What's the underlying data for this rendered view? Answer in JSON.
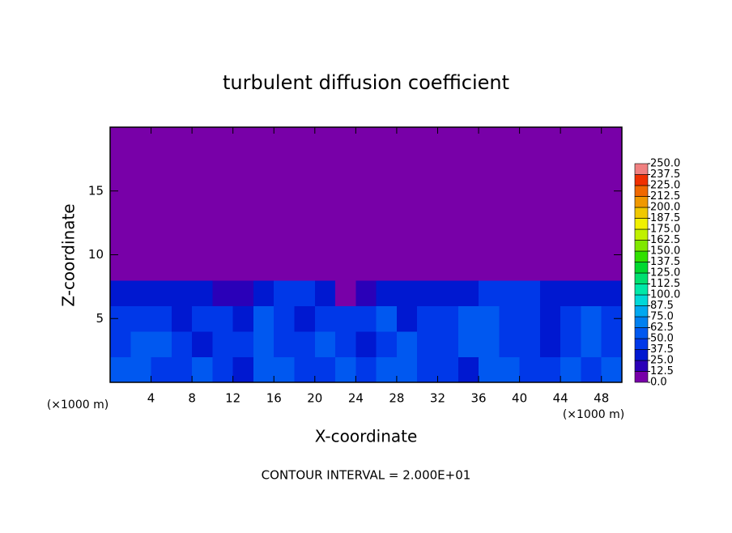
{
  "chart_data": {
    "type": "heatmap",
    "title": "turbulent diffusion coefficient",
    "xlabel": "X-coordinate",
    "ylabel": "Z-coordinate",
    "x_unit": "(×1000 m)",
    "x_unit_right": "(×1000 m)",
    "footer": "CONTOUR INTERVAL = 2.000E+01",
    "xlim": [
      0,
      50
    ],
    "ylim": [
      0,
      20
    ],
    "xticks": [
      4,
      8,
      12,
      16,
      20,
      24,
      28,
      32,
      36,
      40,
      44,
      48
    ],
    "yticks": [
      5,
      10,
      15
    ],
    "x": [
      1,
      3,
      5,
      7,
      9,
      11,
      13,
      15,
      17,
      19,
      21,
      23,
      25,
      27,
      29,
      31,
      33,
      35,
      37,
      39,
      41,
      43,
      45,
      47,
      49
    ],
    "y": [
      1,
      3,
      5,
      7,
      9,
      11,
      13,
      15,
      17,
      19
    ],
    "z": [
      [
        55,
        60,
        45,
        40,
        50,
        45,
        35,
        50,
        60,
        45,
        40,
        55,
        45,
        50,
        60,
        40,
        45,
        35,
        50,
        55,
        40,
        45,
        50,
        45,
        55
      ],
      [
        40,
        50,
        55,
        45,
        35,
        40,
        45,
        55,
        40,
        45,
        60,
        40,
        35,
        45,
        50,
        45,
        40,
        50,
        60,
        45,
        40,
        35,
        40,
        55,
        45
      ],
      [
        45,
        40,
        40,
        35,
        40,
        45,
        35,
        50,
        40,
        30,
        45,
        40,
        40,
        50,
        35,
        40,
        45,
        55,
        60,
        40,
        40,
        35,
        40,
        50,
        45
      ],
      [
        25,
        30,
        35,
        35,
        25,
        15,
        20,
        35,
        40,
        40,
        30,
        10,
        15,
        30,
        35,
        35,
        35,
        30,
        40,
        40,
        40,
        35,
        35,
        35,
        25
      ],
      [
        0,
        0,
        0,
        0,
        0,
        0,
        0,
        0,
        0,
        0,
        0,
        0,
        0,
        0,
        0,
        0,
        0,
        0,
        0,
        0,
        0,
        0,
        0,
        0,
        0
      ],
      [
        0,
        0,
        0,
        0,
        0,
        0,
        0,
        0,
        0,
        0,
        0,
        0,
        0,
        0,
        0,
        0,
        0,
        0,
        0,
        0,
        0,
        0,
        0,
        0,
        0
      ],
      [
        0,
        0,
        0,
        0,
        0,
        0,
        0,
        0,
        0,
        0,
        0,
        0,
        0,
        0,
        0,
        0,
        0,
        0,
        0,
        0,
        0,
        0,
        0,
        0,
        0
      ],
      [
        0,
        0,
        0,
        0,
        0,
        0,
        0,
        0,
        0,
        0,
        0,
        0,
        0,
        0,
        0,
        0,
        0,
        0,
        0,
        0,
        0,
        0,
        0,
        0,
        0
      ],
      [
        0,
        0,
        0,
        0,
        0,
        0,
        0,
        0,
        0,
        0,
        0,
        0,
        0,
        0,
        0,
        0,
        0,
        0,
        0,
        0,
        0,
        0,
        0,
        0,
        0
      ],
      [
        0,
        0,
        0,
        0,
        0,
        0,
        0,
        0,
        0,
        0,
        0,
        0,
        0,
        0,
        0,
        0,
        0,
        0,
        0,
        0,
        0,
        0,
        0,
        0,
        0
      ]
    ],
    "colorbar_ticks": [
      {
        "value": 0,
        "label": "0.0"
      },
      {
        "value": 12.5,
        "label": "12.5"
      },
      {
        "value": 25,
        "label": "25.0"
      },
      {
        "value": 37.5,
        "label": "37.5"
      },
      {
        "value": 50,
        "label": "50.0"
      },
      {
        "value": 62.5,
        "label": "62.5"
      },
      {
        "value": 75,
        "label": "75.0"
      },
      {
        "value": 87.5,
        "label": "87.5"
      },
      {
        "value": 100,
        "label": "100.0"
      },
      {
        "value": 112.5,
        "label": "112.5"
      },
      {
        "value": 125,
        "label": "125.0"
      },
      {
        "value": 137.5,
        "label": "137.5"
      },
      {
        "value": 150,
        "label": "150.0"
      },
      {
        "value": 162.5,
        "label": "162.5"
      },
      {
        "value": 175,
        "label": "175.0"
      },
      {
        "value": 187.5,
        "label": "187.5"
      },
      {
        "value": 200,
        "label": "200.0"
      },
      {
        "value": 212.5,
        "label": "212.5"
      },
      {
        "value": 225,
        "label": "225.0"
      },
      {
        "value": 237.5,
        "label": "237.5"
      },
      {
        "value": 250,
        "label": "250.0"
      }
    ],
    "colorbar_colors": [
      "#7800a8",
      "#2a00b8",
      "#0018d0",
      "#0038e8",
      "#0058f0",
      "#0080f0",
      "#00a8f0",
      "#00d8d8",
      "#00e8a8",
      "#00e070",
      "#00d830",
      "#30e000",
      "#80e800",
      "#c0f000",
      "#f0f000",
      "#f0c800",
      "#f09800",
      "#f06800",
      "#f03000",
      "#f08080"
    ]
  }
}
